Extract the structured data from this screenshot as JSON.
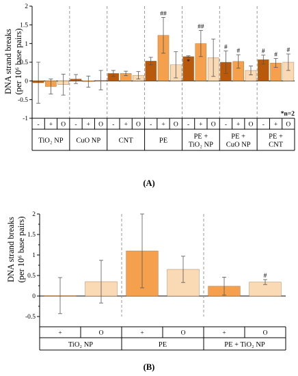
{
  "colors": {
    "minus": "#b8590c",
    "plus": "#f4a04c",
    "o": "#fad9b5",
    "axis": "#000000",
    "separator": "#8c8c8c",
    "error": "#555555"
  },
  "chart_data": [
    {
      "type": "bar",
      "panel_label": "(A)",
      "ylabel_line1": "DNA strand breaks",
      "ylabel_line2": "(per 10⁶ base pairs)",
      "ylim": [
        -1,
        2
      ],
      "yticks": [
        "-1",
        "-0.5",
        "0",
        "0.5",
        "1",
        "1.5",
        "2"
      ],
      "grid": false,
      "annotation": "*n=2",
      "groups": [
        {
          "label": "TiO₂ NP",
          "bars": [
            {
              "cond": "-",
              "value": -0.05,
              "err": 0.55,
              "mark": ""
            },
            {
              "cond": "+",
              "value": -0.15,
              "err": 0.2,
              "mark": ""
            },
            {
              "cond": "O",
              "value": -0.1,
              "err": 0.28,
              "mark": ""
            }
          ]
        },
        {
          "label": "CuO NP",
          "bars": [
            {
              "cond": "-",
              "value": 0.05,
              "err": 0.12,
              "mark": ""
            },
            {
              "cond": "+",
              "value": -0.02,
              "err": 0.15,
              "mark": ""
            },
            {
              "cond": "O",
              "value": 0.02,
              "err": 0.26,
              "mark": ""
            }
          ]
        },
        {
          "label": "CNT",
          "bars": [
            {
              "cond": "-",
              "value": 0.2,
              "err": 0.08,
              "mark": ""
            },
            {
              "cond": "+",
              "value": 0.2,
              "err": 0.06,
              "mark": ""
            },
            {
              "cond": "O",
              "value": 0.15,
              "err": 0.1,
              "mark": ""
            }
          ]
        },
        {
          "label": "PE",
          "bars": [
            {
              "cond": "-",
              "value": 0.53,
              "err": 0.1,
              "mark": ""
            },
            {
              "cond": "+",
              "value": 1.22,
              "err": 0.48,
              "mark": "##"
            },
            {
              "cond": "O",
              "value": 0.43,
              "err": 0.35,
              "mark": ""
            }
          ]
        },
        {
          "label": "PE + TiO₂ NP",
          "bars": [
            {
              "cond": "-",
              "value": 0.65,
              "err": 0.02,
              "mark": "*"
            },
            {
              "cond": "+",
              "value": 1.0,
              "err": 0.35,
              "mark": "##"
            },
            {
              "cond": "O",
              "value": 0.62,
              "err": 0.5,
              "mark": ""
            }
          ]
        },
        {
          "label": "PE + CuO NP",
          "bars": [
            {
              "cond": "-",
              "value": 0.5,
              "err": 0.3,
              "mark": "#"
            },
            {
              "cond": "+",
              "value": 0.52,
              "err": 0.18,
              "mark": "#"
            },
            {
              "cond": "O",
              "value": 0.28,
              "err": 0.12,
              "mark": ""
            }
          ]
        },
        {
          "label": "PE + CNT",
          "bars": [
            {
              "cond": "-",
              "value": 0.57,
              "err": 0.12,
              "mark": "#"
            },
            {
              "cond": "+",
              "value": 0.48,
              "err": 0.12,
              "mark": "#"
            },
            {
              "cond": "O",
              "value": 0.5,
              "err": 0.22,
              "mark": "#"
            }
          ]
        }
      ]
    },
    {
      "type": "bar",
      "panel_label": "(B)",
      "ylabel_line1": "DNA strand breaks",
      "ylabel_line2": "(per 10⁶ base pairs)",
      "ylim": [
        -0.5,
        2
      ],
      "yticks": [
        "-0.5",
        "0",
        "0.5",
        "1",
        "1.5",
        "2"
      ],
      "grid": false,
      "groups": [
        {
          "label": "TiO₂ NP",
          "bars": [
            {
              "cond": "+",
              "value": 0.01,
              "err": 0.44,
              "mark": ""
            },
            {
              "cond": "O",
              "value": 0.35,
              "err": 0.52,
              "mark": ""
            }
          ]
        },
        {
          "label": "PE",
          "bars": [
            {
              "cond": "+",
              "value": 1.1,
              "err": 0.9,
              "mark": ""
            },
            {
              "cond": "O",
              "value": 0.65,
              "err": 0.32,
              "mark": ""
            }
          ]
        },
        {
          "label": "PE + TiO₂ NP",
          "bars": [
            {
              "cond": "+",
              "value": 0.24,
              "err": 0.22,
              "mark": ""
            },
            {
              "cond": "O",
              "value": 0.34,
              "err": 0.06,
              "mark": "#"
            }
          ]
        }
      ]
    }
  ]
}
